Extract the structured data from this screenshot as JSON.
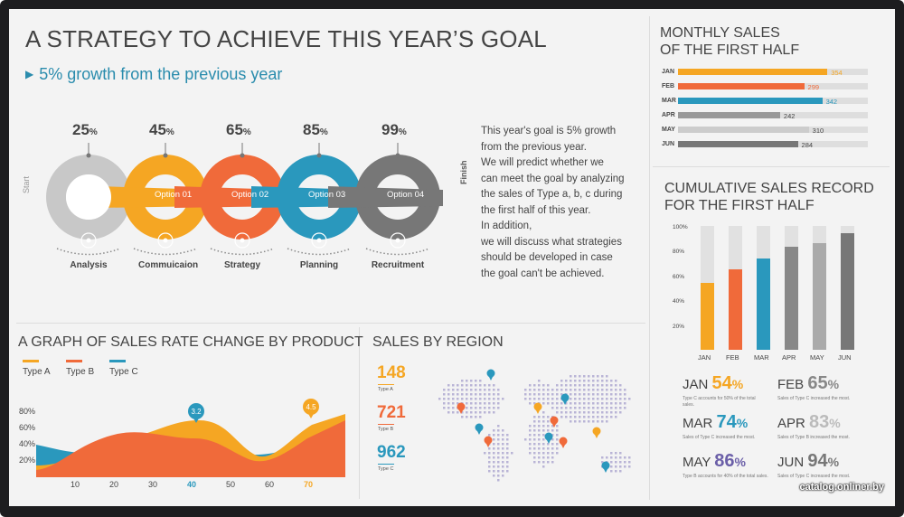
{
  "header": {
    "title": "A STRATEGY TO ACHIEVE THIS YEAR’S GOAL",
    "subtitle": "5% growth from the previous year"
  },
  "strategy": {
    "start_label": "Start",
    "finish_label": "Finish",
    "steps": [
      {
        "percent": "25",
        "option": "",
        "label": "Analysis",
        "color": "#c8c8c8",
        "icon": "money-bag-icon"
      },
      {
        "percent": "45",
        "option": "Option 01",
        "label": "Commuicaion",
        "color": "#f5a623",
        "icon": "flask-icon"
      },
      {
        "percent": "65",
        "option": "Option 02",
        "label": "Strategy",
        "color": "#f06a3a",
        "icon": "clock-icon"
      },
      {
        "percent": "85",
        "option": "Option 03",
        "label": "Planning",
        "color": "#2a98bd",
        "icon": "database-icon"
      },
      {
        "percent": "99",
        "option": "Option 04",
        "label": "Recruitment",
        "color": "#777777",
        "icon": "lightbulb-icon"
      }
    ],
    "percent_suffix": "%",
    "description": [
      "This year's goal is 5% growth",
      "from the previous year.",
      "We will predict whether we",
      "can meet the goal by analyzing",
      "the sales of Type a, b, c during",
      "the first half of this year.",
      "In addition,",
      "we will discuss what strategies",
      "should be developed in case",
      "the goal can't be achieved."
    ]
  },
  "monthly": {
    "title_line1": "MONTHLY SALES",
    "title_line2": "OF THE FIRST HALF",
    "chart_data": {
      "type": "bar",
      "orientation": "horizontal",
      "categories": [
        "JAN",
        "FEB",
        "MAR",
        "APR",
        "MAY",
        "JUN"
      ],
      "values": [
        354,
        299,
        342,
        242,
        310,
        284
      ],
      "colors": [
        "#f5a623",
        "#f06a3a",
        "#2a98bd",
        "#999999",
        "#cccccc",
        "#777777"
      ],
      "xlim": [
        0,
        450
      ]
    }
  },
  "cumulative": {
    "title_line1": "CUMULATIVE SALES RECORD",
    "title_line2": "FOR THE FIRST HALF",
    "chart_data": {
      "type": "bar",
      "categories": [
        "JAN",
        "FEB",
        "MAR",
        "APR",
        "MAY",
        "JUN"
      ],
      "values": [
        54,
        65,
        74,
        83,
        86,
        94
      ],
      "colors": [
        "#f5a623",
        "#f06a3a",
        "#2a98bd",
        "#888888",
        "#aaaaaa",
        "#777777"
      ],
      "yticks": [
        "100%",
        "80%",
        "60%",
        "40%",
        "20%"
      ],
      "ylim": [
        0,
        100
      ]
    },
    "stats": [
      {
        "month": "JAN",
        "pct": "54",
        "color": "#f5a623",
        "note": "Type C accounts for 50% of the total sales."
      },
      {
        "month": "FEB",
        "pct": "65",
        "color": "#888888",
        "note": "Sales of Type C increased the most."
      },
      {
        "month": "MAR",
        "pct": "74",
        "color": "#2a98bd",
        "note": "Sales of Type C increased the most."
      },
      {
        "month": "APR",
        "pct": "83",
        "color": "#bbbbbb",
        "note": "Sales of Type B increased the most."
      },
      {
        "month": "MAY",
        "pct": "86",
        "color": "#6b5fa8",
        "note": "Type B accounts for 40% of the total sales."
      },
      {
        "month": "JUN",
        "pct": "94",
        "color": "#777777",
        "note": "Sales of Type C increased the most."
      }
    ],
    "pct_suffix": "%"
  },
  "rate": {
    "title": "A GRAPH OF SALES RATE CHANGE BY PRODUCT",
    "chart_data": {
      "type": "area",
      "x": [
        10,
        20,
        30,
        40,
        50,
        60,
        70
      ],
      "yticks": [
        "80%",
        "60%",
        "40%",
        "20%"
      ],
      "series": [
        {
          "name": "Type A",
          "color": "#f5a623"
        },
        {
          "name": "Type B",
          "color": "#f06a3a"
        },
        {
          "name": "Type C",
          "color": "#2a98bd"
        }
      ],
      "callouts": [
        {
          "label": "3.2",
          "x": 40,
          "color": "#2a98bd"
        },
        {
          "label": "4.5",
          "x": 70,
          "color": "#f5a623"
        }
      ]
    }
  },
  "region": {
    "title": "SALES BY REGION",
    "items": [
      {
        "value": "148",
        "label": "Type A",
        "color": "#f5a623"
      },
      {
        "value": "721",
        "label": "Type B",
        "color": "#f06a3a"
      },
      {
        "value": "962",
        "label": "Type C",
        "color": "#2a98bd"
      }
    ]
  },
  "watermark": "catalog.onliner.by"
}
